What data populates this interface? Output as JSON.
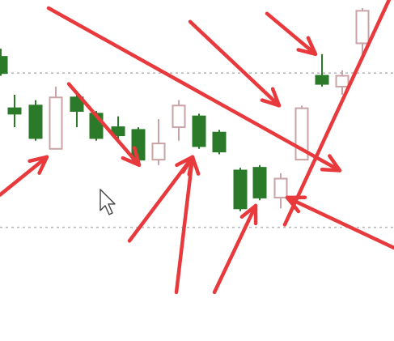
{
  "chart_data": {
    "type": "candlestick",
    "title": "",
    "xlabel": "",
    "ylabel": "",
    "ylim": [
      0,
      100
    ],
    "grid": {
      "horizontal_dashed": [
        81,
        24
      ]
    },
    "colors": {
      "bull": "#ffffff",
      "bull_edge": "#c9a3a6",
      "bear": "#2a7a2a",
      "bear_edge": "#2a7a2a",
      "arrow": "#e8393c",
      "grid": "#b9b9b9",
      "background": "#ffffff"
    },
    "candles": [
      {
        "x": 1,
        "open": 87,
        "high": 90,
        "low": 80,
        "close": 81
      },
      {
        "x": 18,
        "open": 68,
        "high": 73,
        "low": 61,
        "close": 66
      },
      {
        "x": 44,
        "open": 69,
        "high": 71,
        "low": 56,
        "close": 57
      },
      {
        "x": 69,
        "open": 53,
        "high": 76,
        "low": 53,
        "close": 72
      },
      {
        "x": 95,
        "open": 72,
        "high": 74,
        "low": 61,
        "close": 67
      },
      {
        "x": 119,
        "open": 66,
        "high": 67,
        "low": 56,
        "close": 57
      },
      {
        "x": 146,
        "open": 61,
        "high": 65,
        "low": 56,
        "close": 58
      },
      {
        "x": 171,
        "open": 60,
        "high": 61,
        "low": 48,
        "close": 49
      },
      {
        "x": 196,
        "open": 49,
        "high": 64,
        "low": 47,
        "close": 55
      },
      {
        "x": 221,
        "open": 61,
        "high": 71,
        "low": 56,
        "close": 69
      },
      {
        "x": 246,
        "open": 65,
        "high": 66,
        "low": 53,
        "close": 54
      },
      {
        "x": 271,
        "open": 59,
        "high": 60,
        "low": 51,
        "close": 52
      },
      {
        "x": 297,
        "open": 45,
        "high": 46,
        "low": 30,
        "close": 31
      },
      {
        "x": 321,
        "open": 46,
        "high": 47,
        "low": 34,
        "close": 35
      },
      {
        "x": 347,
        "open": 35,
        "high": 44,
        "low": 31,
        "close": 42
      },
      {
        "x": 373,
        "open": 49,
        "high": 69,
        "low": 49,
        "close": 68
      },
      {
        "x": 398,
        "open": 80,
        "high": 88,
        "low": 76,
        "close": 77
      },
      {
        "x": 423,
        "open": 76,
        "high": 82,
        "low": 73,
        "close": 80
      },
      {
        "x": 448,
        "open": 92,
        "high": 105,
        "low": 86,
        "close": 104
      }
    ],
    "annotations": [
      {
        "type": "arrow",
        "color": "#e8393c",
        "from": [
          0.0,
          36
        ],
        "to": [
          58,
          50
        ]
      },
      {
        "type": "arrow",
        "color": "#e8393c",
        "from": [
          85,
          77
        ],
        "to": [
          172,
          47
        ]
      },
      {
        "type": "arrow",
        "color": "#e8393c",
        "from": [
          160,
          19
        ],
        "to": [
          238,
          50
        ]
      },
      {
        "type": "arrow",
        "color": "#e8393c",
        "from": [
          218,
          0
        ],
        "to": [
          238,
          50
        ]
      },
      {
        "type": "arrow",
        "color": "#e8393c",
        "from": [
          265,
          0
        ],
        "to": [
          316,
          32
        ]
      },
      {
        "type": "arrow",
        "color": "#e8393c",
        "from": [
          235,
          100
        ],
        "to": [
          345,
          69
        ]
      },
      {
        "type": "arrow",
        "color": "#e8393c",
        "from": [
          60,
          105
        ],
        "to": [
          420,
          45
        ]
      },
      {
        "type": "arrow",
        "color": "#e8393c",
        "from": [
          330,
          103
        ],
        "to": [
          390,
          88
        ]
      },
      {
        "type": "arrow",
        "color": "#e8393c",
        "from": [
          490,
          16
        ],
        "to": [
          355,
          35
        ]
      },
      {
        "type": "line",
        "color": "#e8393c",
        "from": [
          352,
          25
        ],
        "to": [
          487,
          112
        ]
      }
    ]
  },
  "cursor": {
    "type": "arrow-cursor",
    "x": 124,
    "y": 38
  }
}
